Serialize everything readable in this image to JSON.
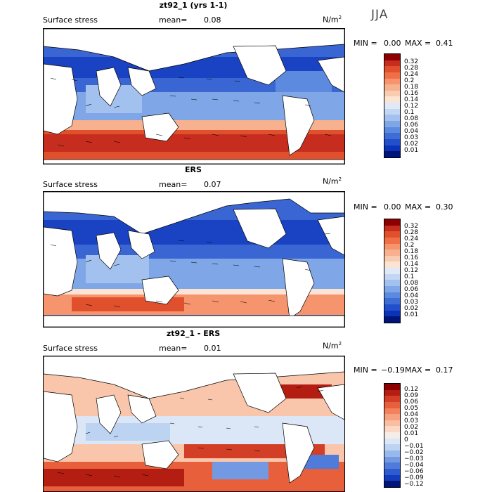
{
  "season": "JJA",
  "panels": [
    {
      "title": "zt92_1 (yrs 1-1)",
      "variable": "Surface stress",
      "mean_label": "mean=",
      "mean_value": "0.08",
      "units": "N/m",
      "units_exp": "2",
      "min_label": "MIN =",
      "min_value": "0.00",
      "max_label": "MAX =",
      "max_value": "0.41",
      "colorbar": {
        "colors": [
          "#8b0000",
          "#c62d1f",
          "#e0502d",
          "#ef7047",
          "#f6946d",
          "#f8b18f",
          "#f9cbb0",
          "#fbe4d3",
          "#dfe9f8",
          "#c3d7f3",
          "#a2c1ee",
          "#7fa6e6",
          "#5c8ade",
          "#3e6dd6",
          "#2250cc",
          "#0a33b8",
          "#00157a"
        ],
        "ticks": [
          "0.32",
          "0.28",
          "0.24",
          "0.2",
          "0.18",
          "0.16",
          "0.14",
          "0.12",
          "0.1",
          "0.08",
          "0.06",
          "0.04",
          "0.03",
          "0.02",
          "0.01"
        ]
      }
    },
    {
      "title": "ERS",
      "variable": "Surface stress",
      "mean_label": "mean=",
      "mean_value": "0.07",
      "units": "N/m",
      "units_exp": "2",
      "min_label": "MIN =",
      "min_value": "0.00",
      "max_label": "MAX =",
      "max_value": "0.30",
      "colorbar": {
        "colors": [
          "#8b0000",
          "#c62d1f",
          "#e0502d",
          "#ef7047",
          "#f6946d",
          "#f8b18f",
          "#f9cbb0",
          "#fbe4d3",
          "#dfe9f8",
          "#c3d7f3",
          "#a2c1ee",
          "#7fa6e6",
          "#5c8ade",
          "#3e6dd6",
          "#2250cc",
          "#0a33b8",
          "#00157a"
        ],
        "ticks": [
          "0.32",
          "0.28",
          "0.24",
          "0.2",
          "0.18",
          "0.16",
          "0.14",
          "0.12",
          "0.1",
          "0.08",
          "0.06",
          "0.04",
          "0.03",
          "0.02",
          "0.01"
        ]
      }
    },
    {
      "title": "zt92_1 - ERS",
      "variable": "Surface stress",
      "mean_label": "mean=",
      "mean_value": "0.01",
      "units": "N/m",
      "units_exp": "2",
      "min_label": "MIN =",
      "min_value": "−0.19",
      "max_label": "MAX =",
      "max_value": "0.17",
      "colorbar": {
        "colors": [
          "#8b0000",
          "#b41d12",
          "#d33e26",
          "#e85f3c",
          "#f3825c",
          "#f8a180",
          "#f9bea2",
          "#fbd8c5",
          "#f5ede8",
          "#dbe6f7",
          "#bcd3f2",
          "#98b9ec",
          "#7399e3",
          "#4f7bda",
          "#2e5bcf",
          "#123bbd",
          "#00157a"
        ],
        "ticks": [
          "0.12",
          "0.09",
          "0.06",
          "0.05",
          "0.04",
          "0.03",
          "0.02",
          "0.01",
          "0",
          "−0.01",
          "−0.02",
          "−0.03",
          "−0.04",
          "−0.06",
          "−0.09",
          "−0.12"
        ]
      }
    }
  ]
}
